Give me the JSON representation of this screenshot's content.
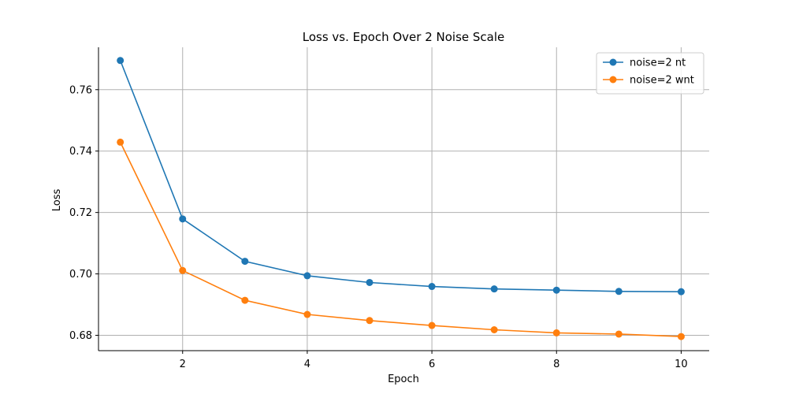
{
  "chart_data": {
    "type": "line",
    "title": "Loss vs. Epoch Over 2 Noise Scale",
    "xlabel": "Epoch",
    "ylabel": "Loss",
    "x": [
      1,
      2,
      3,
      4,
      5,
      6,
      7,
      8,
      9,
      10
    ],
    "xlim": [
      0.65,
      10.45
    ],
    "ylim": [
      0.675,
      0.7738
    ],
    "xticks": [
      2,
      4,
      6,
      8,
      10
    ],
    "yticks": [
      0.68,
      0.7,
      0.72,
      0.74,
      0.76
    ],
    "xtick_labels": [
      "2",
      "4",
      "6",
      "8",
      "10"
    ],
    "ytick_labels": [
      "0.68",
      "0.70",
      "0.72",
      "0.74",
      "0.76"
    ],
    "grid": true,
    "legend_position": "top-right",
    "markers": true,
    "series": [
      {
        "name": "noise=2 nt",
        "color": "#1f77b4",
        "values": [
          0.7695,
          0.7179,
          0.7041,
          0.6994,
          0.6972,
          0.6959,
          0.6951,
          0.6947,
          0.6943,
          0.6942
        ]
      },
      {
        "name": "noise=2 wnt",
        "color": "#ff7f0e",
        "values": [
          0.7429,
          0.7011,
          0.6914,
          0.6868,
          0.6848,
          0.6832,
          0.6818,
          0.6808,
          0.6804,
          0.6796
        ]
      }
    ]
  }
}
